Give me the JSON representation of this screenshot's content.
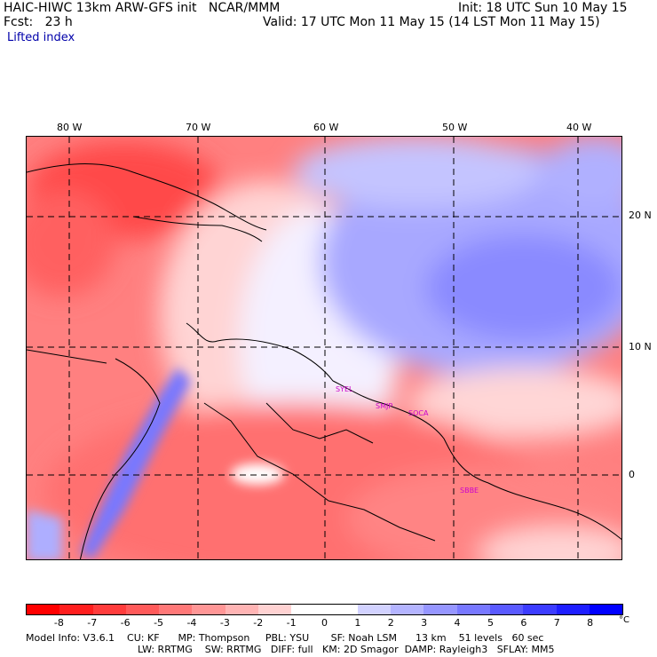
{
  "header": {
    "model_line": "HAIC-HIWC 13km ARW-GFS init   NCAR/MMM",
    "fcst_line": "Fcst:   23 h",
    "init_line": "Init: 18 UTC Sun 10 May 15",
    "valid_line": "Valid: 17 UTC Mon 11 May 15 (14 LST Mon 11 May 15)",
    "field_name": "Lifted index"
  },
  "map": {
    "lon_labels": [
      "80 W",
      "70 W",
      "60 W",
      "50 W",
      "40 W"
    ],
    "lat_labels": [
      "20 N",
      "10 N",
      "0"
    ],
    "stations": [
      "SYEL",
      "SMJP",
      "SOCA",
      "SBBE"
    ],
    "station_color": "#cc00cc"
  },
  "colorbar": {
    "ticks": [
      "-8",
      "-7",
      "-6",
      "-5",
      "-4",
      "-3",
      "-2",
      "-1",
      "0",
      "1",
      "2",
      "3",
      "4",
      "5",
      "6",
      "7",
      "8"
    ],
    "unit": "°C",
    "colors": [
      "#ff0000",
      "#ff1e1e",
      "#ff3c3c",
      "#ff5a5a",
      "#ff7878",
      "#ff9696",
      "#ffb4b4",
      "#ffd2d2",
      "#ffffff",
      "#ffffff",
      "#d2d2ff",
      "#b4b4ff",
      "#9696ff",
      "#7878ff",
      "#5a5aff",
      "#3c3cff",
      "#1e1eff",
      "#0000ff"
    ]
  },
  "model_info": {
    "line1": "Model Info: V3.6.1    CU: KF      MP: Thompson     PBL: YSU       SF: Noah LSM      13 km    51 levels   60 sec",
    "line2": "LW: RRTMG    SW: RRTMG   DIFF: full   KM: 2D Smagor  DAMP: Rayleigh3   SFLAY: MM5"
  }
}
